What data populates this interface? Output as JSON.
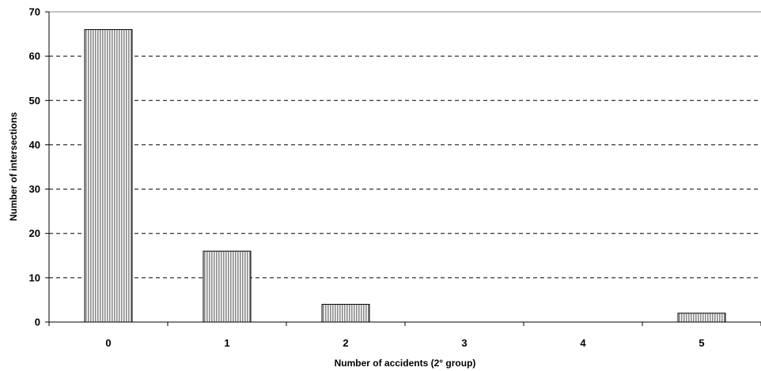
{
  "chart_data": {
    "type": "bar",
    "title": "",
    "xlabel": "Number of accidents (2° group)",
    "ylabel": "Number of intersections",
    "categories": [
      "0",
      "1",
      "2",
      "3",
      "4",
      "5"
    ],
    "values": [
      66,
      16,
      4,
      0,
      0,
      2
    ],
    "ylim": [
      0,
      70
    ],
    "yticks": [
      "0",
      "10",
      "20",
      "30",
      "40",
      "50",
      "60",
      "70"
    ],
    "grid": "horizontal dashed",
    "legend": "none",
    "bar_fill": "#cccccc",
    "bar_pattern": "vertical hatch",
    "bar_stroke": "#000000"
  }
}
